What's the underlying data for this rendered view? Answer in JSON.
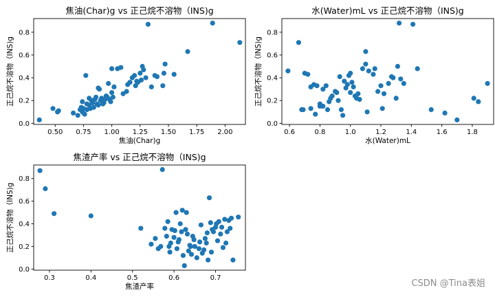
{
  "watermark": "CSDN @Tina表姐",
  "style": {
    "point_color": "#1f77b4",
    "axis_color": "#000000",
    "text_color": "#000000"
  },
  "chart_data": [
    {
      "type": "scatter",
      "title": "焦油(Char)g vs 正己烷不溶物（INS)g",
      "xlabel": "焦油(Char)g",
      "ylabel": "正己烷不溶物（INS)g",
      "xlim": [
        0.31,
        2.18
      ],
      "ylim": [
        -0.01,
        0.92
      ],
      "xticks": [
        0.5,
        0.75,
        1.0,
        1.25,
        1.5,
        1.75,
        2.0
      ],
      "xticklabels": [
        "0.50",
        "0.75",
        "1.00",
        "1.25",
        "1.50",
        "1.75",
        "2.00"
      ],
      "yticks": [
        0.0,
        0.2,
        0.4,
        0.6,
        0.8
      ],
      "yticklabels": [
        "0.0",
        "0.2",
        "0.4",
        "0.6",
        "0.8"
      ],
      "grid": false,
      "x": [
        0.36,
        0.48,
        0.52,
        0.53,
        0.66,
        0.7,
        0.72,
        0.73,
        0.74,
        0.74,
        0.75,
        0.76,
        0.77,
        0.78,
        0.78,
        0.8,
        0.8,
        0.81,
        0.82,
        0.83,
        0.84,
        0.85,
        0.86,
        0.87,
        0.88,
        0.88,
        0.89,
        0.9,
        0.91,
        0.92,
        0.93,
        0.94,
        0.95,
        0.96,
        0.97,
        0.98,
        0.99,
        1.0,
        1.0,
        1.01,
        1.02,
        1.05,
        1.08,
        1.1,
        1.13,
        1.14,
        1.16,
        1.18,
        1.2,
        1.21,
        1.22,
        1.23,
        1.25,
        1.26,
        1.27,
        1.28,
        1.3,
        1.32,
        1.35,
        1.38,
        1.4,
        1.45,
        1.46,
        1.47,
        1.55,
        1.67,
        1.89,
        2.13
      ],
      "y": [
        0.03,
        0.13,
        0.1,
        0.11,
        0.09,
        0.07,
        0.12,
        0.14,
        0.19,
        0.1,
        0.13,
        0.08,
        0.42,
        0.12,
        0.17,
        0.16,
        0.22,
        0.13,
        0.2,
        0.18,
        0.14,
        0.21,
        0.23,
        0.17,
        0.31,
        0.16,
        0.3,
        0.2,
        0.22,
        0.17,
        0.18,
        0.21,
        0.24,
        0.23,
        0.35,
        0.21,
        0.19,
        0.48,
        0.27,
        0.23,
        0.32,
        0.48,
        0.49,
        0.26,
        0.28,
        0.34,
        0.36,
        0.4,
        0.42,
        0.33,
        0.37,
        0.36,
        0.44,
        0.38,
        0.5,
        0.47,
        0.4,
        0.87,
        0.32,
        0.42,
        0.41,
        0.33,
        0.44,
        0.52,
        0.43,
        0.63,
        0.88,
        0.71
      ]
    },
    {
      "type": "scatter",
      "title": "水(Water)mL vs 正己烷不溶物（INS)g",
      "xlabel": "水(Water)mL",
      "ylabel": "正己烷不溶物（INS)g",
      "xlim": [
        0.55,
        1.94
      ],
      "ylim": [
        -0.01,
        0.92
      ],
      "xticks": [
        0.6,
        0.8,
        1.0,
        1.2,
        1.4,
        1.6,
        1.8
      ],
      "xticklabels": [
        "0.6",
        "0.8",
        "1.0",
        "1.2",
        "1.4",
        "1.6",
        "1.8"
      ],
      "yticks": [
        0.0,
        0.2,
        0.4,
        0.6,
        0.8
      ],
      "yticklabels": [
        "0.0",
        "0.2",
        "0.4",
        "0.6",
        "0.8"
      ],
      "grid": false,
      "x": [
        0.59,
        0.66,
        0.68,
        0.69,
        0.7,
        0.72,
        0.74,
        0.74,
        0.76,
        0.77,
        0.78,
        0.8,
        0.8,
        0.82,
        0.82,
        0.84,
        0.85,
        0.86,
        0.87,
        0.88,
        0.9,
        0.91,
        0.92,
        0.93,
        0.94,
        0.95,
        0.96,
        0.97,
        0.98,
        0.99,
        1.0,
        1.0,
        1.01,
        1.02,
        1.03,
        1.04,
        1.05,
        1.06,
        1.08,
        1.1,
        1.1,
        1.11,
        1.12,
        1.15,
        1.16,
        1.18,
        1.2,
        1.21,
        1.22,
        1.25,
        1.27,
        1.28,
        1.3,
        1.31,
        1.32,
        1.33,
        1.35,
        1.41,
        1.44,
        1.53,
        1.62,
        1.7,
        1.81,
        1.84,
        1.9
      ],
      "y": [
        0.46,
        0.71,
        0.12,
        0.12,
        0.44,
        0.43,
        0.32,
        0.13,
        0.34,
        0.08,
        0.33,
        0.17,
        0.15,
        0.3,
        0.15,
        0.33,
        0.12,
        0.19,
        0.22,
        0.24,
        0.28,
        0.27,
        0.2,
        0.41,
        0.12,
        0.07,
        0.37,
        0.31,
        0.34,
        0.42,
        0.27,
        0.44,
        0.36,
        0.32,
        0.24,
        0.22,
        0.26,
        0.21,
        0.48,
        0.63,
        0.52,
        0.1,
        0.46,
        0.43,
        0.48,
        0.28,
        0.33,
        0.13,
        0.26,
        0.35,
        0.41,
        0.4,
        0.22,
        0.5,
        0.88,
        0.39,
        0.35,
        0.87,
        0.48,
        0.12,
        0.09,
        0.03,
        0.22,
        0.19,
        0.35
      ]
    },
    {
      "type": "scatter",
      "title": "焦渣产率 vs 正己烷不溶物（INS)g",
      "xlabel": "焦渣产率",
      "ylabel": "正己烷不溶物（INS)g",
      "xlim": [
        0.262,
        0.772
      ],
      "ylim": [
        -0.01,
        0.92
      ],
      "xticks": [
        0.3,
        0.4,
        0.5,
        0.6,
        0.7
      ],
      "xticklabels": [
        "0.3",
        "0.4",
        "0.5",
        "0.6",
        "0.7"
      ],
      "yticks": [
        0.0,
        0.2,
        0.4,
        0.6,
        0.8
      ],
      "yticklabels": [
        "0.0",
        "0.2",
        "0.4",
        "0.6",
        "0.8"
      ],
      "grid": false,
      "x": [
        0.277,
        0.29,
        0.311,
        0.4,
        0.52,
        0.545,
        0.555,
        0.562,
        0.568,
        0.572,
        0.578,
        0.582,
        0.585,
        0.588,
        0.59,
        0.592,
        0.595,
        0.6,
        0.602,
        0.605,
        0.607,
        0.61,
        0.612,
        0.615,
        0.618,
        0.62,
        0.622,
        0.625,
        0.628,
        0.63,
        0.632,
        0.635,
        0.638,
        0.64,
        0.642,
        0.645,
        0.648,
        0.65,
        0.655,
        0.66,
        0.662,
        0.665,
        0.668,
        0.672,
        0.675,
        0.678,
        0.68,
        0.682,
        0.685,
        0.688,
        0.69,
        0.692,
        0.695,
        0.7,
        0.702,
        0.705,
        0.708,
        0.712,
        0.715,
        0.718,
        0.722,
        0.725,
        0.728,
        0.732,
        0.735,
        0.738,
        0.742,
        0.755
      ],
      "y": [
        0.87,
        0.71,
        0.49,
        0.47,
        0.36,
        0.22,
        0.27,
        0.18,
        0.2,
        0.88,
        0.36,
        0.29,
        0.42,
        0.2,
        0.15,
        0.23,
        0.35,
        0.28,
        0.34,
        0.5,
        0.18,
        0.24,
        0.26,
        0.4,
        0.33,
        0.52,
        0.12,
        0.03,
        0.35,
        0.5,
        0.31,
        0.16,
        0.21,
        0.2,
        0.13,
        0.29,
        0.26,
        0.2,
        0.1,
        0.18,
        0.24,
        0.39,
        0.14,
        0.17,
        0.27,
        0.23,
        0.32,
        0.08,
        0.63,
        0.41,
        0.15,
        0.35,
        0.33,
        0.37,
        0.4,
        0.25,
        0.42,
        0.31,
        0.37,
        0.19,
        0.44,
        0.23,
        0.33,
        0.43,
        0.36,
        0.45,
        0.08,
        0.46
      ]
    }
  ]
}
